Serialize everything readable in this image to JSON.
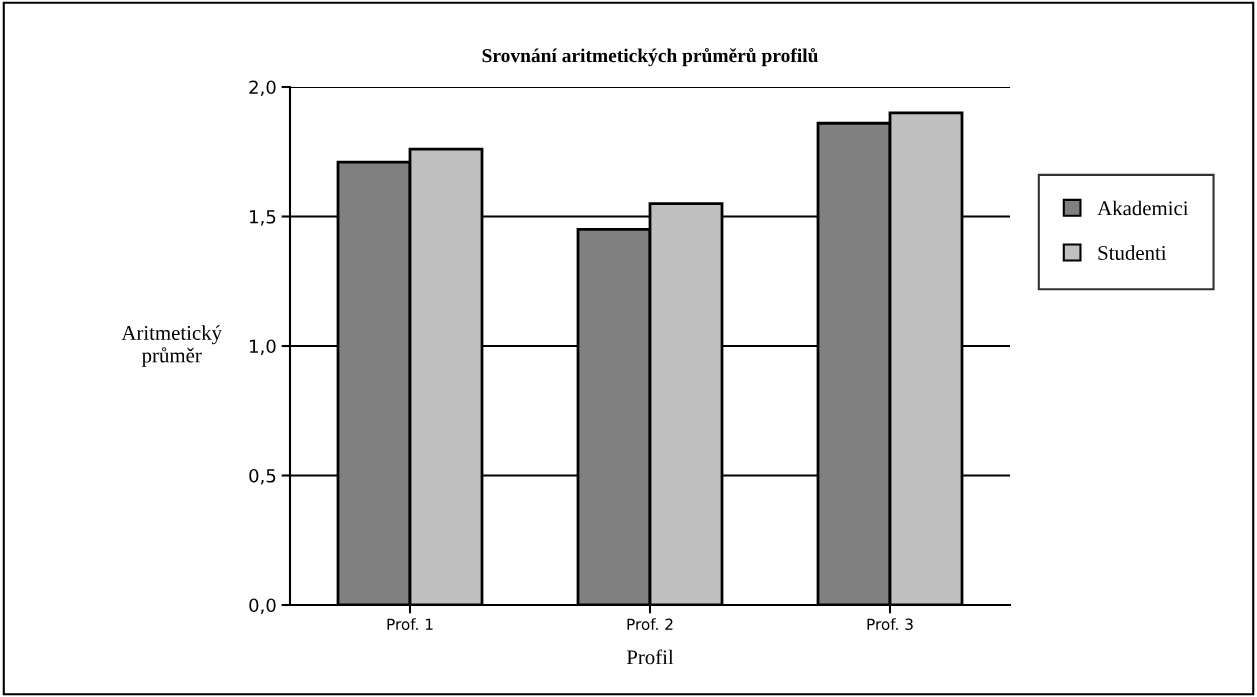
{
  "chart_data": {
    "type": "bar",
    "title": "Srovnání aritmetických průměrů profilů",
    "xlabel": "Profil",
    "ylabel": "Aritmetický\nprůměr",
    "categories": [
      "Prof. 1",
      "Prof. 2",
      "Prof. 3"
    ],
    "series": [
      {
        "name": "Akademici",
        "color": "#808080",
        "values": [
          1.71,
          1.45,
          1.86
        ]
      },
      {
        "name": "Studenti",
        "color": "#c0c0c0",
        "values": [
          1.76,
          1.55,
          1.9
        ]
      }
    ],
    "ylim": [
      0,
      2
    ],
    "yticks": [
      {
        "value": 0,
        "label": "0,0"
      },
      {
        "value": 0.5,
        "label": "0,5"
      },
      {
        "value": 1,
        "label": "1,0"
      },
      {
        "value": 1.5,
        "label": "1,5"
      },
      {
        "value": 2,
        "label": "2,0"
      }
    ],
    "grid": "y",
    "legend": "right"
  }
}
